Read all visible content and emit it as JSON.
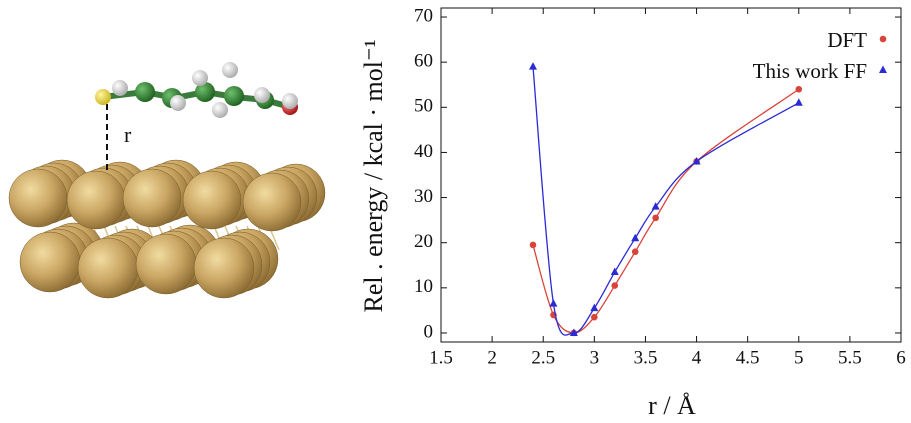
{
  "illustration": {
    "distance_label": "r"
  },
  "chart_data": {
    "type": "line",
    "x_label": "r / Å",
    "y_label": "Rel . energy / kcal · mol⁻¹",
    "x": [
      2.4,
      2.6,
      2.8,
      3.0,
      3.2,
      3.4,
      3.6,
      4.0,
      5.0
    ],
    "series": [
      {
        "name": "DFT",
        "color": "#d9443a",
        "marker": "circle",
        "values": [
          19.5,
          4,
          0,
          3.5,
          10.5,
          18,
          25.5,
          38,
          54
        ]
      },
      {
        "name": "This work FF",
        "color": "#2b2bd4",
        "marker": "triangle",
        "values": [
          59,
          6.5,
          0,
          5.5,
          13.5,
          21,
          28,
          38,
          51
        ]
      }
    ],
    "xlim": [
      1.5,
      6
    ],
    "xticks": [
      1.5,
      2,
      2.5,
      3,
      3.5,
      4,
      4.5,
      5,
      5.5,
      6
    ],
    "ylim": [
      -2,
      72
    ],
    "yticks": [
      0,
      10,
      20,
      30,
      40,
      50,
      60,
      70
    ],
    "grid": false,
    "legend": "upper right",
    "smooth": true
  }
}
